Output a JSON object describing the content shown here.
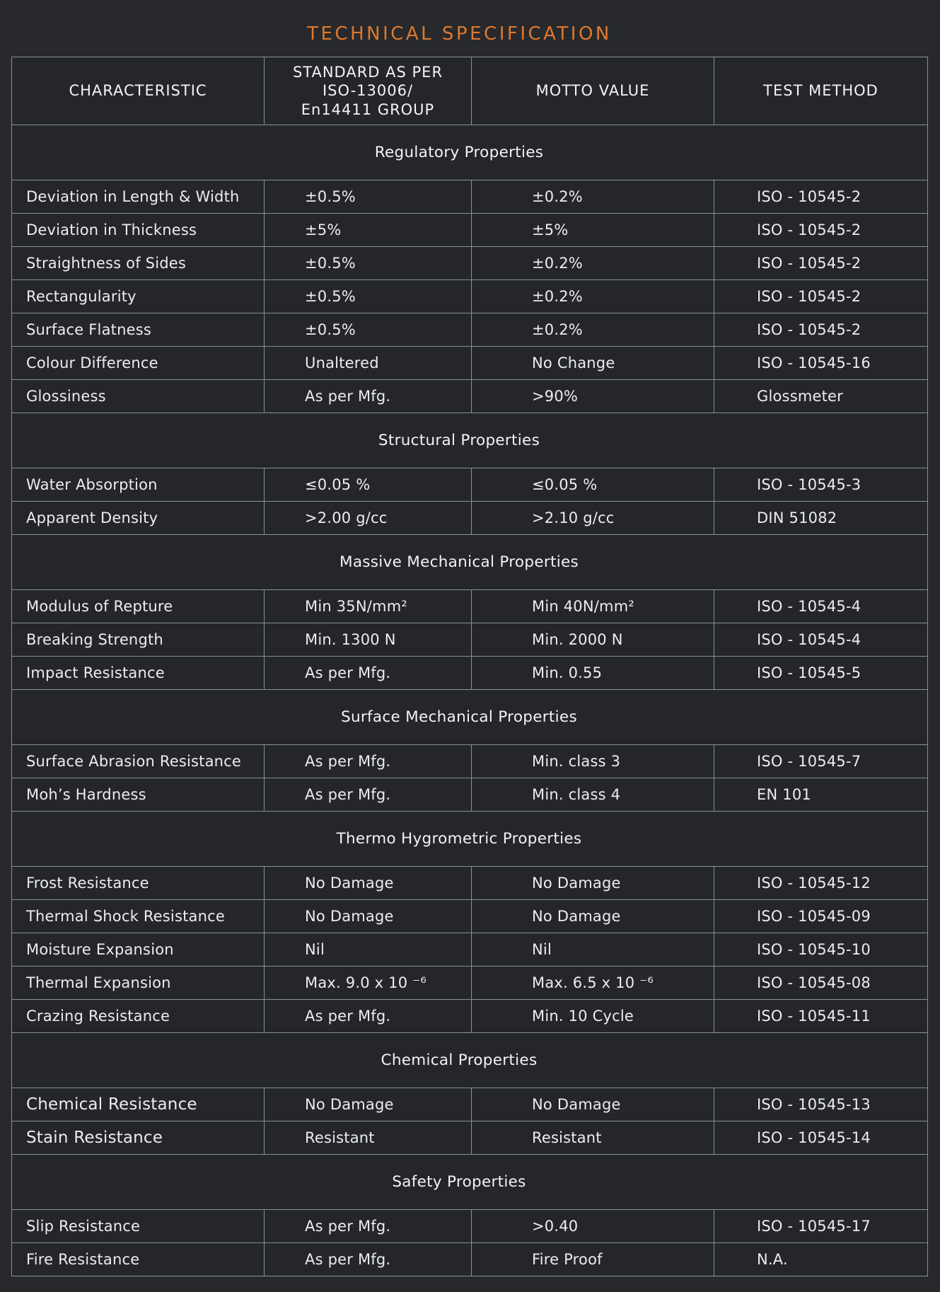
{
  "title": "TECHNICAL SPECIFICATION",
  "colors": {
    "background": "#27292c",
    "cell_background": "#242629",
    "border": "#8b9093",
    "text": "#ebedee",
    "title_accent": "#e0782c"
  },
  "columns": {
    "characteristic": "CHARACTERISTIC",
    "standard": "STANDARD AS PER\nISO-13006/\nEn14411 GROUP",
    "motto": "MOTTO VALUE",
    "test": "TEST METHOD"
  },
  "sections": [
    {
      "title": "Regulatory Properties",
      "rows": [
        {
          "c": "Deviation in Length & Width",
          "std": "±0.5%",
          "motto": "±0.2%",
          "test": "ISO - 10545-2"
        },
        {
          "c": "Deviation in Thickness",
          "std": "±5%",
          "motto": "±5%",
          "test": "ISO - 10545-2"
        },
        {
          "c": "Straightness of Sides",
          "std": "±0.5%",
          "motto": "±0.2%",
          "test": "ISO - 10545-2"
        },
        {
          "c": "Rectangularity",
          "std": "±0.5%",
          "motto": "±0.2%",
          "test": "ISO - 10545-2"
        },
        {
          "c": "Surface Flatness",
          "std": "±0.5%",
          "motto": "±0.2%",
          "test": "ISO - 10545-2"
        },
        {
          "c": "Colour Difference",
          "std": "Unaltered",
          "motto": "No Change",
          "test": "ISO - 10545-16"
        },
        {
          "c": "Glossiness",
          "std": "As per Mfg.",
          "motto": ">90%",
          "test": "Glossmeter"
        }
      ]
    },
    {
      "title": "Structural Properties",
      "rows": [
        {
          "c": "Water Absorption",
          "std": "≤0.05 %",
          "motto": "≤0.05 %",
          "test": "ISO - 10545-3"
        },
        {
          "c": "Apparent Density",
          "std": ">2.00 g/cc",
          "motto": ">2.10 g/cc",
          "test": "DIN 51082"
        }
      ]
    },
    {
      "title": "Massive Mechanical Properties",
      "rows": [
        {
          "c": "Modulus of Repture",
          "std": "Min 35N/mm²",
          "motto": "Min 40N/mm²",
          "test": "ISO - 10545-4"
        },
        {
          "c": "Breaking Strength",
          "std": "Min. 1300 N",
          "motto": "Min. 2000 N",
          "test": "ISO - 10545-4"
        },
        {
          "c": "Impact Resistance",
          "std": "As per Mfg.",
          "motto": "Min. 0.55",
          "test": "ISO - 10545-5"
        }
      ]
    },
    {
      "title": "Surface Mechanical Properties",
      "rows": [
        {
          "c": "Surface Abrasion Resistance",
          "std": "As per Mfg.",
          "motto": "Min. class 3",
          "test": "ISO - 10545-7"
        },
        {
          "c": "Moh’s Hardness",
          "std": "As per Mfg.",
          "motto": "Min. class 4",
          "test": "EN 101"
        }
      ]
    },
    {
      "title": "Thermo Hygrometric Properties",
      "rows": [
        {
          "c": "Frost Resistance",
          "std": "No Damage",
          "motto": "No Damage",
          "test": "ISO - 10545-12"
        },
        {
          "c": "Thermal Shock Resistance",
          "std": "No Damage",
          "motto": "No Damage",
          "test": "ISO - 10545-09"
        },
        {
          "c": "Moisture Expansion",
          "std": "Nil",
          "motto": "Nil",
          "test": "ISO - 10545-10"
        },
        {
          "c": "Thermal Expansion",
          "std": "Max. 9.0 x 10 ⁻⁶",
          "motto": "Max. 6.5 x 10 ⁻⁶",
          "test": "ISO - 10545-08"
        },
        {
          "c": "Crazing Resistance",
          "std": "As per Mfg.",
          "motto": "Min. 10 Cycle",
          "test": "ISO - 10545-11"
        }
      ]
    },
    {
      "title": "Chemical Properties",
      "rows": [
        {
          "c": "Chemical Resistance",
          "std": "No Damage",
          "motto": "No Damage",
          "test": "ISO - 10545-13"
        },
        {
          "c": "Stain Resistance",
          "std": "Resistant",
          "motto": "Resistant",
          "test": "ISO - 10545-14"
        }
      ]
    },
    {
      "title": "Safety Properties",
      "rows": [
        {
          "c": "Slip Resistance",
          "std": "As per Mfg.",
          "motto": ">0.40",
          "test": "ISO - 10545-17"
        },
        {
          "c": "Fire Resistance",
          "std": "As per Mfg.",
          "motto": "Fire Proof",
          "test": "N.A."
        }
      ]
    }
  ]
}
